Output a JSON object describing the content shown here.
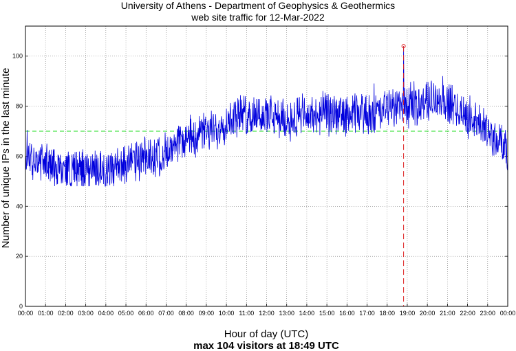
{
  "chart_data": {
    "type": "line",
    "title_line1": "University of Athens - Department of Geophysics & Geothermics",
    "title_line2": "web site traffic for 12-Mar-2022",
    "xlabel": "Hour of day (UTC)",
    "ylabel": "Number of unique IPs in the last minute",
    "caption": "max 104 visitors at 18:49 UTC",
    "x_ticks": [
      "00:00",
      "01:00",
      "02:00",
      "03:00",
      "04:00",
      "05:00",
      "06:00",
      "07:00",
      "08:00",
      "09:00",
      "10:00",
      "11:00",
      "12:00",
      "13:00",
      "14:00",
      "15:00",
      "16:00",
      "17:00",
      "18:00",
      "19:00",
      "20:00",
      "21:00",
      "22:00",
      "23:00",
      "00:00"
    ],
    "y_ticks": [
      "0",
      "20",
      "40",
      "60",
      "80",
      "100"
    ],
    "xlim": [
      0,
      24
    ],
    "ylim": [
      0,
      112
    ],
    "grid": true,
    "reference_line": {
      "value": 70,
      "style": "dashed",
      "color": "#22dd22"
    },
    "max_marker": {
      "time_hours": 18.817,
      "value": 104,
      "color": "#dd2222"
    },
    "series": [
      {
        "name": "unique IPs per minute",
        "color": "#0000dd",
        "resolution_minutes": 1,
        "hourly_mean": [
          [
            0,
            61
          ],
          [
            0.5,
            59
          ],
          [
            1,
            57
          ],
          [
            1.5,
            56
          ],
          [
            2,
            55
          ],
          [
            2.5,
            54
          ],
          [
            3,
            55
          ],
          [
            3.5,
            55
          ],
          [
            4,
            54
          ],
          [
            4.5,
            55
          ],
          [
            5,
            57
          ],
          [
            5.5,
            58
          ],
          [
            6,
            59
          ],
          [
            6.5,
            60
          ],
          [
            7,
            61
          ],
          [
            7.5,
            63
          ],
          [
            8,
            67
          ],
          [
            8.5,
            69
          ],
          [
            9,
            69
          ],
          [
            9.5,
            71
          ],
          [
            10,
            74
          ],
          [
            10.5,
            76
          ],
          [
            11,
            76
          ],
          [
            11.5,
            77
          ],
          [
            12,
            76
          ],
          [
            12.5,
            75
          ],
          [
            13,
            74
          ],
          [
            13.5,
            76
          ],
          [
            14,
            76
          ],
          [
            14.5,
            76
          ],
          [
            15,
            77
          ],
          [
            15.5,
            76
          ],
          [
            16,
            76
          ],
          [
            16.5,
            77
          ],
          [
            17,
            77
          ],
          [
            17.5,
            77
          ],
          [
            18,
            79
          ],
          [
            18.5,
            80
          ],
          [
            19,
            80
          ],
          [
            19.5,
            81
          ],
          [
            20,
            82
          ],
          [
            20.5,
            83
          ],
          [
            21,
            81
          ],
          [
            21.5,
            79
          ],
          [
            22,
            76
          ],
          [
            22.5,
            73
          ],
          [
            23,
            70
          ],
          [
            23.5,
            66
          ],
          [
            24,
            63
          ]
        ],
        "noise_amplitude": 8,
        "min": 48,
        "max": 104
      }
    ]
  }
}
